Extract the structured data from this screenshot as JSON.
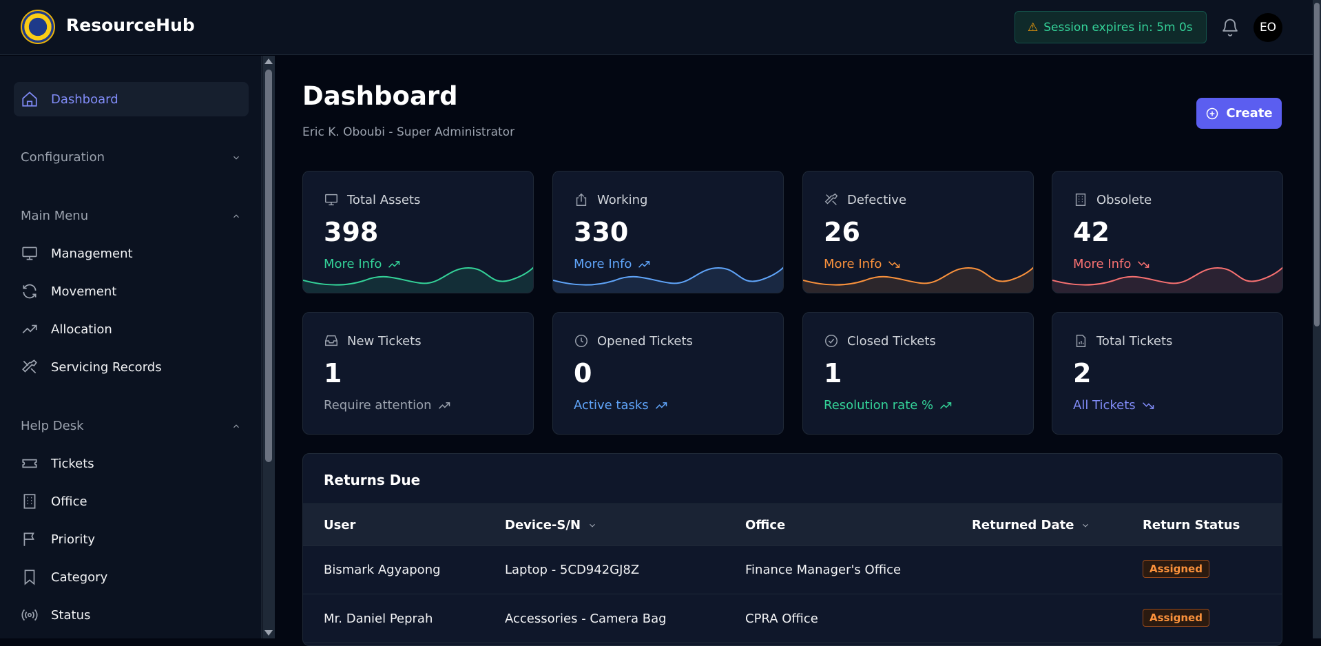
{
  "app": {
    "brand": "ResourceHub"
  },
  "header": {
    "session_text": "Session expires in: 5m 0s",
    "avatar_initials": "EO"
  },
  "sidebar": {
    "dashboard": "Dashboard",
    "configuration": "Configuration",
    "main_menu": "Main Menu",
    "main_items": [
      "Management",
      "Movement",
      "Allocation",
      "Servicing Records"
    ],
    "help_desk": "Help Desk",
    "help_items": [
      "Tickets",
      "Office",
      "Priority",
      "Category",
      "Status"
    ]
  },
  "page": {
    "title": "Dashboard",
    "subtitle": "Eric K. Oboubi - Super Administrator",
    "create_label": "Create"
  },
  "stats": [
    {
      "label": "Total Assets",
      "value": "398",
      "link": "More Info",
      "color": "#34d399"
    },
    {
      "label": "Working",
      "value": "330",
      "link": "More Info",
      "color": "#60a5fa"
    },
    {
      "label": "Defective",
      "value": "26",
      "link": "More Info",
      "color": "#fb923c"
    },
    {
      "label": "Obsolete",
      "value": "42",
      "link": "More Info",
      "color": "#f87171"
    }
  ],
  "tickets": [
    {
      "label": "New Tickets",
      "value": "1",
      "link": "Require attention",
      "color": "#9ca3af"
    },
    {
      "label": "Opened Tickets",
      "value": "0",
      "link": "Active tasks",
      "color": "#60a5fa"
    },
    {
      "label": "Closed Tickets",
      "value": "1",
      "link": "Resolution rate %",
      "color": "#34d399"
    },
    {
      "label": "Total Tickets",
      "value": "2",
      "link": "All Tickets",
      "color": "#818cf8"
    }
  ],
  "returns": {
    "title": "Returns Due",
    "columns": [
      "User",
      "Device-S/N",
      "Office",
      "Returned Date",
      "Return Status"
    ],
    "rows": [
      {
        "user": "Bismark Agyapong",
        "device": "Laptop - 5CD942GJ8Z",
        "office": "Finance Manager's Office",
        "returned": "",
        "status": "Assigned"
      },
      {
        "user": "Mr. Daniel Peprah",
        "device": "Accessories - Camera Bag",
        "office": "CPRA Office",
        "returned": "",
        "status": "Assigned"
      }
    ]
  }
}
